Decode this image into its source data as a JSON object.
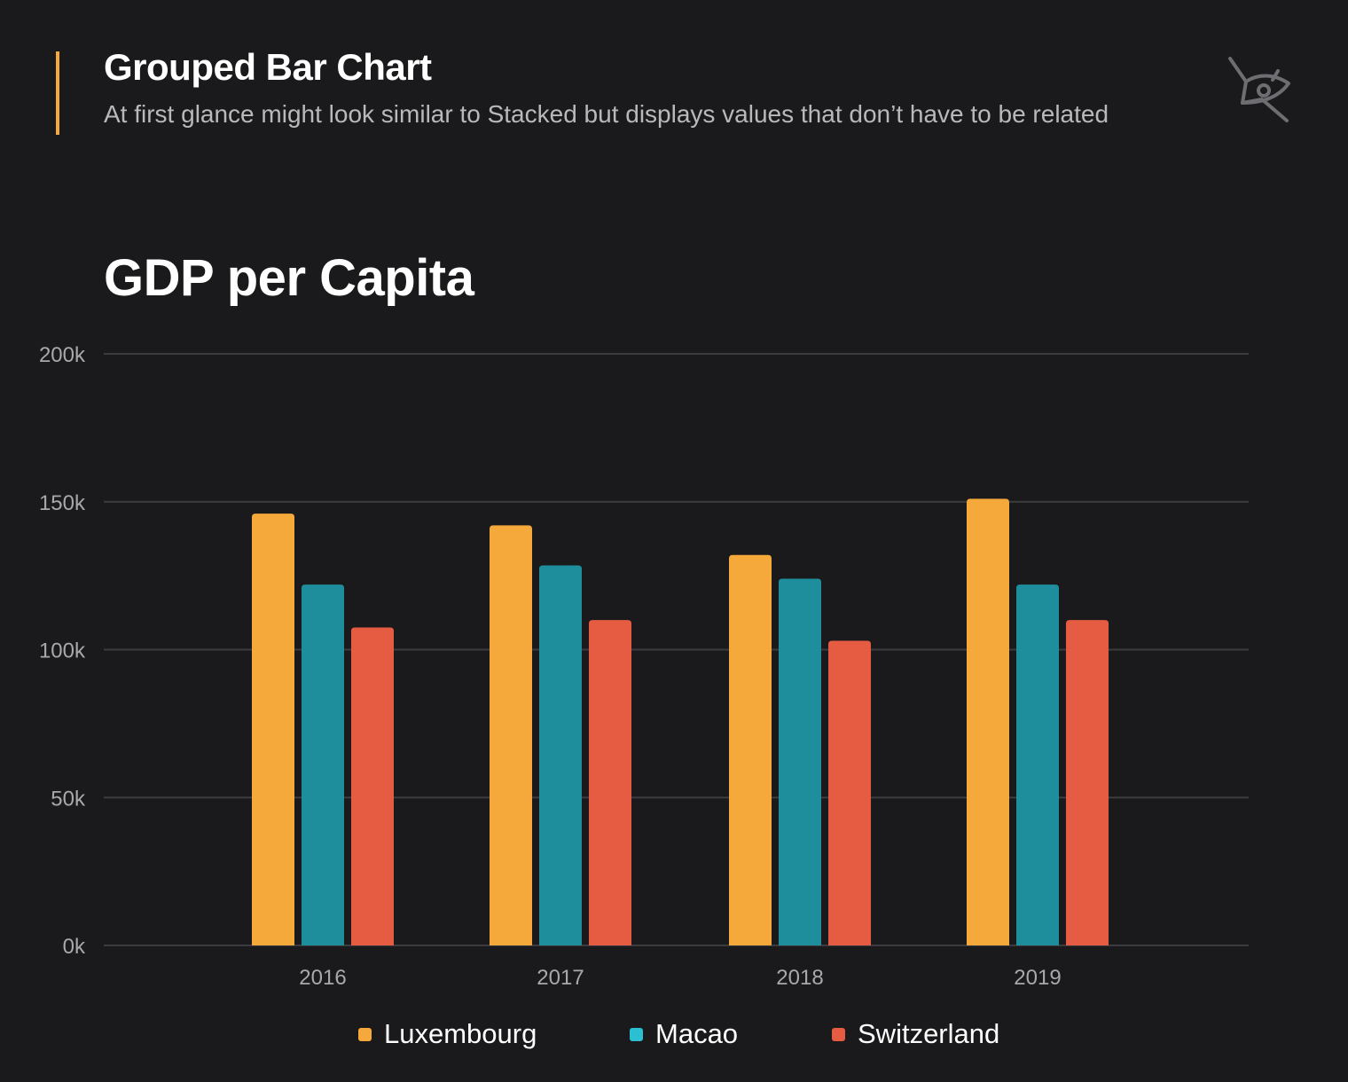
{
  "header": {
    "title": "Grouped Bar Chart",
    "subtitle": "At first glance might look similar to Stacked but displays values that don’t have to be related"
  },
  "logo": {
    "icon": "eye-logo-icon"
  },
  "colors": {
    "background": "#1a1a1c",
    "accent": "#f4a93a",
    "grid": "#3c3c40",
    "tick_text": "#a8a8ad"
  },
  "chart_data": {
    "type": "bar",
    "title": "GDP per Capita",
    "categories": [
      "2016",
      "2017",
      "2018",
      "2019"
    ],
    "series": [
      {
        "name": "Luxembourg",
        "color": "#f4a93a",
        "values": [
          146000,
          142000,
          132000,
          151000
        ]
      },
      {
        "name": "Macao",
        "color": "#1f8e9c",
        "values": [
          122000,
          128500,
          124000,
          122000
        ]
      },
      {
        "name": "Switzerland",
        "color": "#e65c43",
        "values": [
          107500,
          110000,
          103000,
          110000
        ]
      }
    ],
    "legend_colors": [
      "#f4a93a",
      "#2bbfd1",
      "#e65c43"
    ],
    "yticks": [
      {
        "value": 0,
        "label": "0k"
      },
      {
        "value": 50000,
        "label": "50k"
      },
      {
        "value": 100000,
        "label": "100k"
      },
      {
        "value": 150000,
        "label": "150k"
      },
      {
        "value": 200000,
        "label": "200k"
      }
    ],
    "ylim": [
      0,
      200000
    ],
    "xlabel": "",
    "ylabel": "",
    "grid": true,
    "legend_position": "bottom-center"
  }
}
